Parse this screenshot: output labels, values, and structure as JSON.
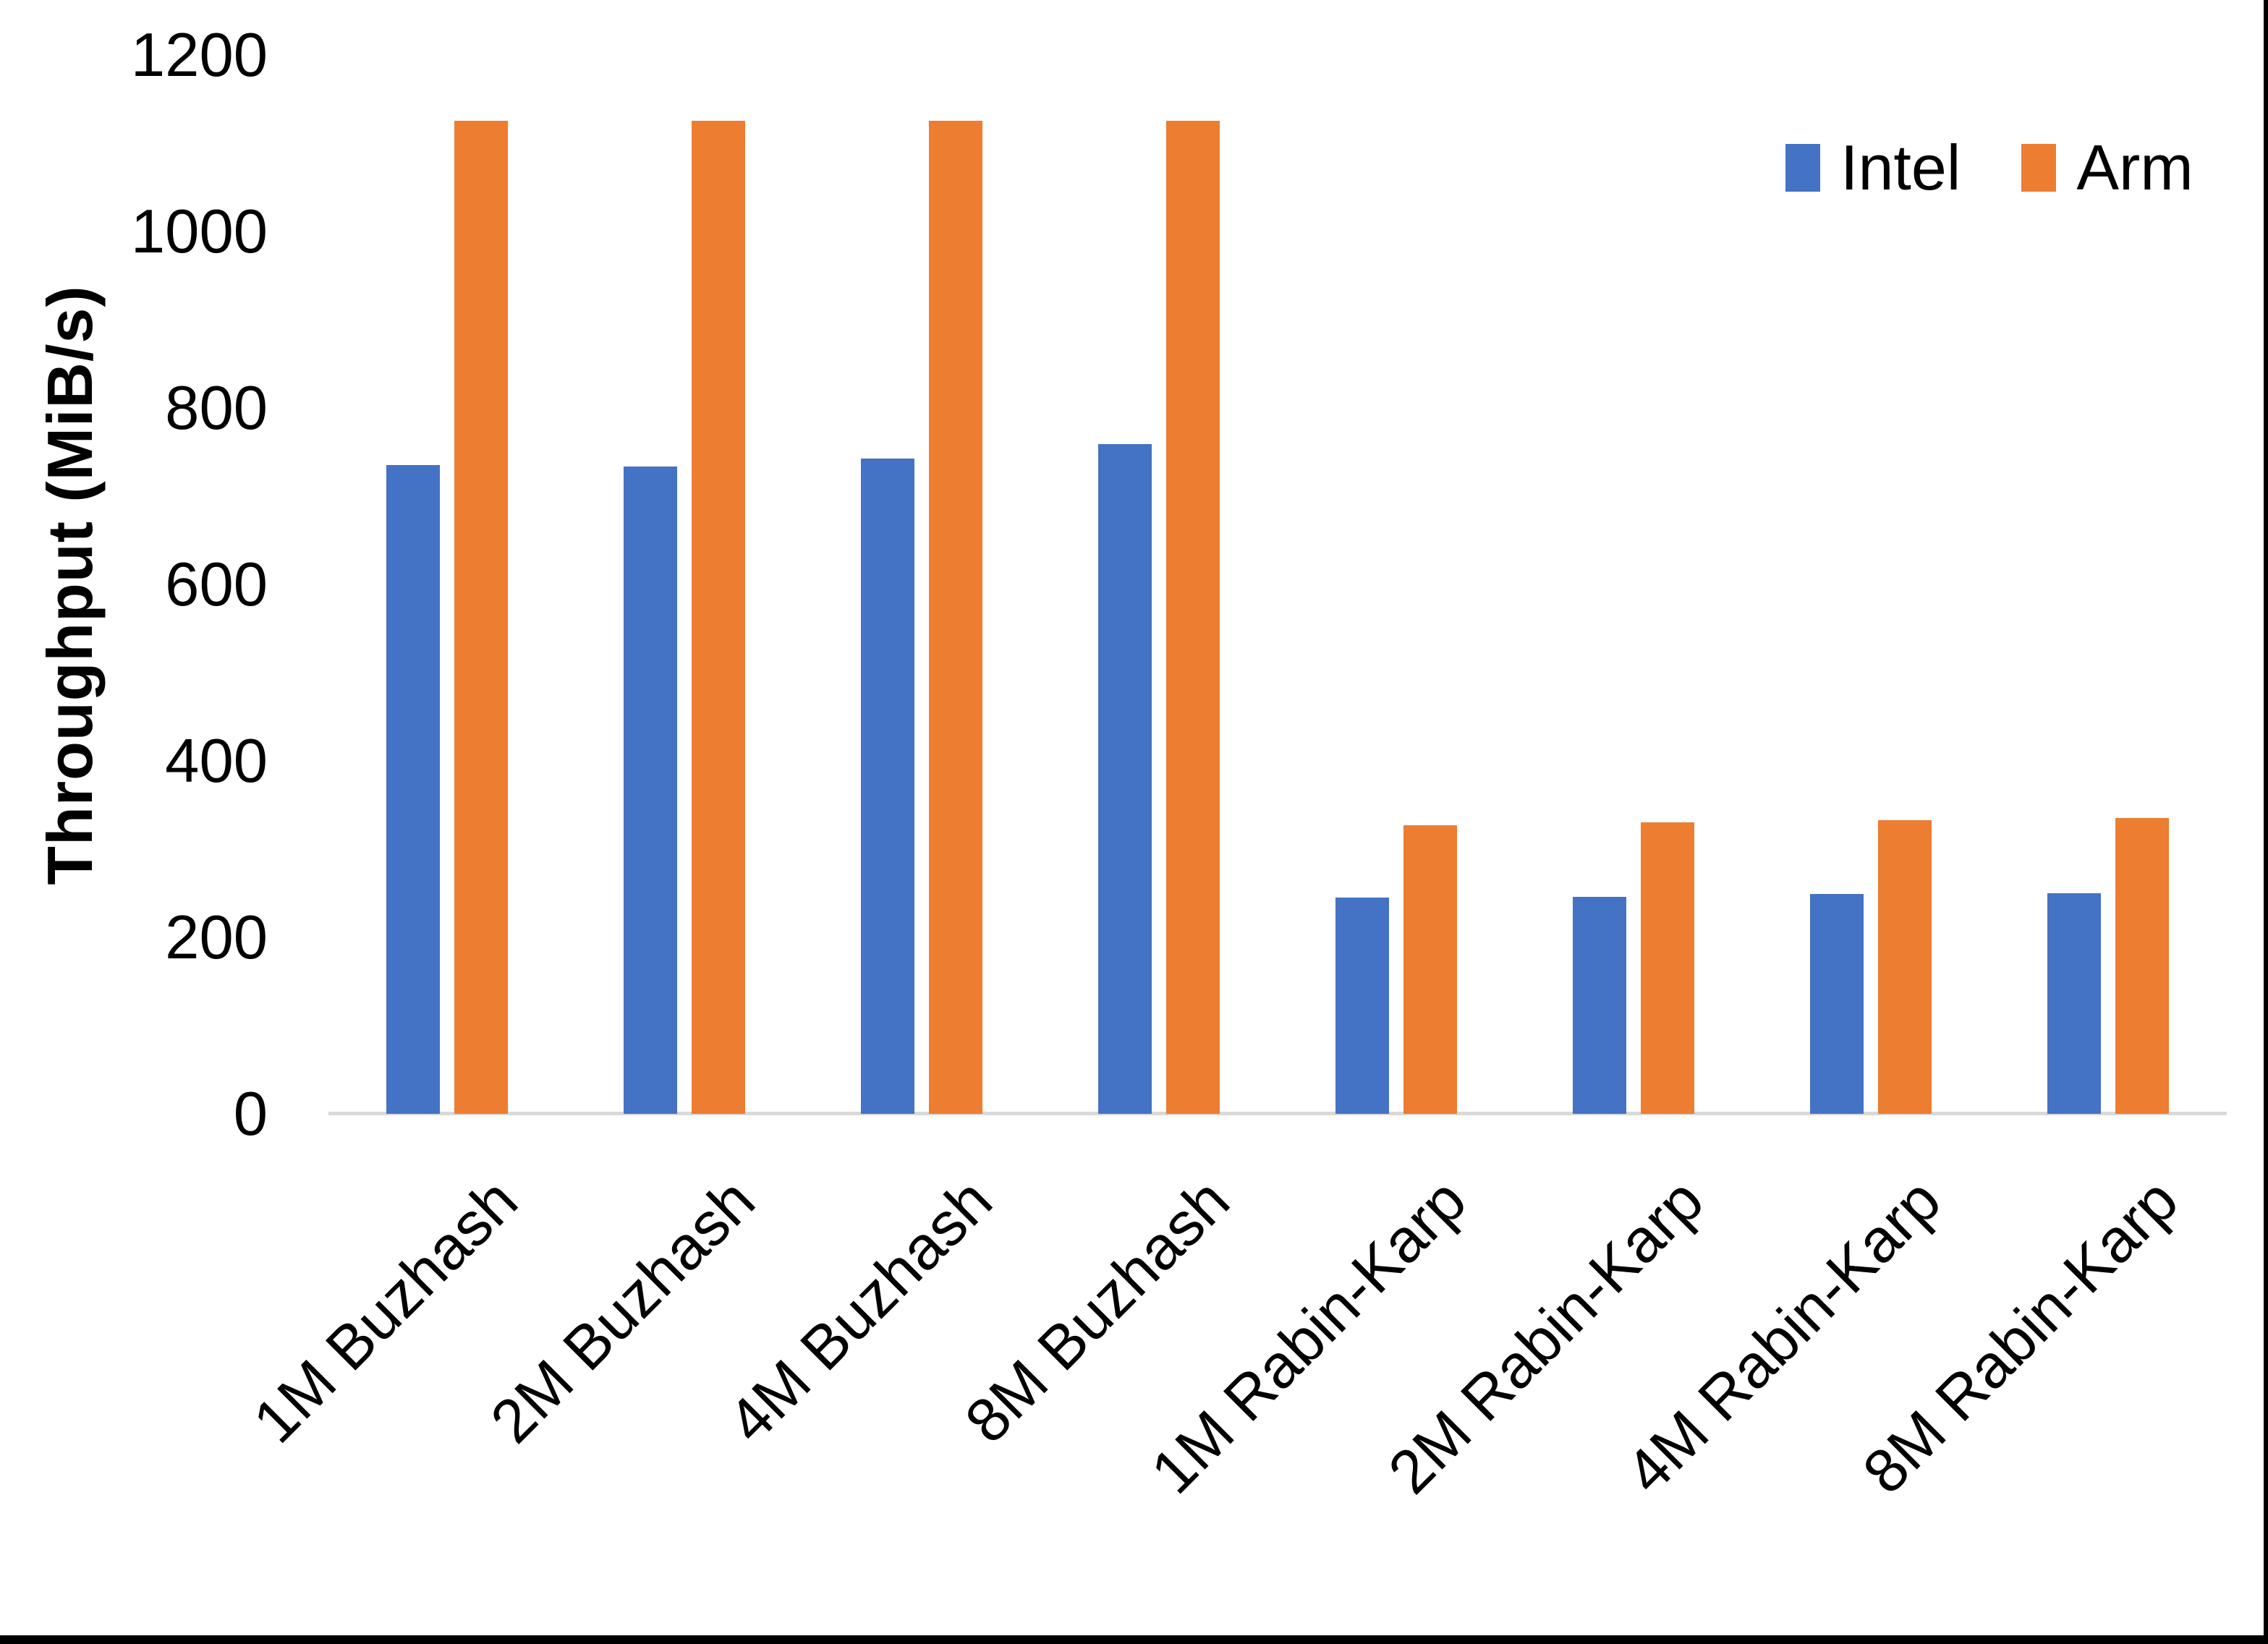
{
  "chart_data": {
    "type": "bar",
    "title": "",
    "xlabel": "",
    "ylabel": "Throughput (MiB/s)",
    "ylim": [
      0,
      1200
    ],
    "yticks": [
      0,
      200,
      400,
      600,
      800,
      1000,
      1200
    ],
    "grid": false,
    "legend_position": "top-right",
    "background_color": "#ffffff",
    "axis_line_color": "#d9d9d9",
    "text_color": "#000000",
    "categories": [
      "1M Buzhash",
      "2M Buzhash",
      "4M Buzhash",
      "8M Buzhash",
      "1M Rabin-Karp",
      "2M Rabin-Karp",
      "4M Rabin-Karp",
      "8M Rabin-Karp"
    ],
    "series": [
      {
        "name": "Intel",
        "color": "#4472c4",
        "values": [
          735,
          734,
          743,
          759,
          245,
          246,
          249,
          250
        ]
      },
      {
        "name": "Arm",
        "color": "#ed7d31",
        "values": [
          1125,
          1125,
          1125,
          1125,
          327,
          330,
          333,
          335
        ]
      }
    ]
  }
}
